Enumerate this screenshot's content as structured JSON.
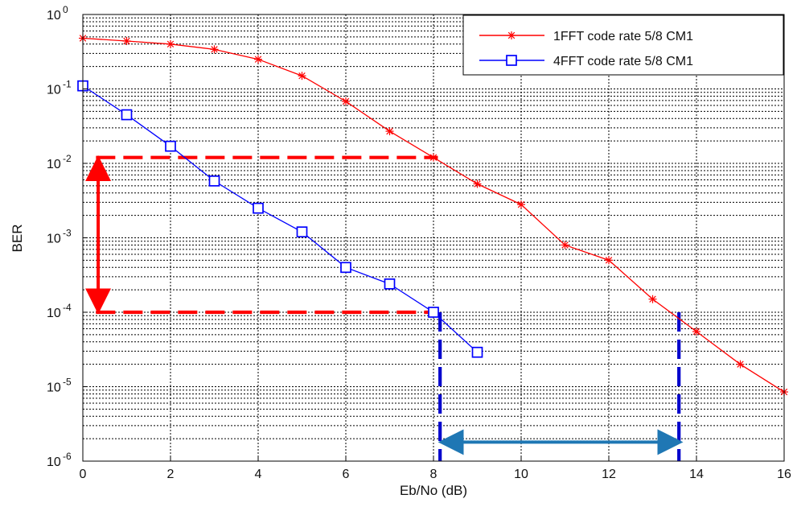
{
  "chart_data": {
    "type": "line",
    "xlabel": "Eb/No (dB)",
    "ylabel": "BER",
    "xlim": [
      0,
      16
    ],
    "ylim": [
      1e-06,
      1
    ],
    "yscale": "log",
    "grid": "major and minor",
    "legend_position": "top-right",
    "x_ticks": [
      "0",
      "2",
      "4",
      "6",
      "8",
      "10",
      "12",
      "14",
      "16"
    ],
    "y_ticks": [
      {
        "base": "10",
        "exp": "0"
      },
      {
        "base": "10",
        "exp": "-1"
      },
      {
        "base": "10",
        "exp": "-2"
      },
      {
        "base": "10",
        "exp": "-3"
      },
      {
        "base": "10",
        "exp": "-4"
      },
      {
        "base": "10",
        "exp": "-5"
      },
      {
        "base": "10",
        "exp": "-6"
      }
    ],
    "series": [
      {
        "name": "1FFT code rate 5/8 CM1",
        "color": "#ff0000",
        "marker": "asterisk",
        "x": [
          0,
          1,
          2,
          3,
          4,
          5,
          6,
          7,
          8,
          9,
          10,
          11,
          12,
          13,
          14,
          15,
          16
        ],
        "values": [
          0.48,
          0.44,
          0.4,
          0.34,
          0.25,
          0.15,
          0.068,
          0.027,
          0.012,
          0.0053,
          0.0028,
          0.0008,
          0.0005,
          0.00015,
          5.5e-05,
          2e-05,
          8.5e-06
        ]
      },
      {
        "name": "4FFT code rate 5/8 CM1",
        "color": "#0000ff",
        "marker": "square",
        "x": [
          0,
          1,
          2,
          3,
          4,
          5,
          6,
          7,
          8,
          9
        ],
        "values": [
          0.11,
          0.045,
          0.017,
          0.0058,
          0.0025,
          0.0012,
          0.0004,
          0.00024,
          0.0001,
          2.9e-05
        ]
      }
    ],
    "annotations": [
      {
        "kind": "dashed-line",
        "color": "#ff0000",
        "from": {
          "x": 0.3,
          "y": 0.012
        },
        "to": {
          "x": 8.1,
          "y": 0.012
        }
      },
      {
        "kind": "dashed-line",
        "color": "#ff0000",
        "from": {
          "x": 0.3,
          "y": 0.0001
        },
        "to": {
          "x": 8.1,
          "y": 0.0001
        }
      },
      {
        "kind": "double-arrow",
        "color": "#ff0000",
        "from": {
          "x": 0.35,
          "y": 0.0105
        },
        "to": {
          "x": 0.35,
          "y": 0.000115
        }
      },
      {
        "kind": "dashed-line",
        "color": "#0000cc",
        "from": {
          "x": 8.15,
          "y": 0.0001
        },
        "to": {
          "x": 8.15,
          "y": 1e-06
        }
      },
      {
        "kind": "dashed-line",
        "color": "#0000cc",
        "from": {
          "x": 13.6,
          "y": 0.0001
        },
        "to": {
          "x": 13.6,
          "y": 1e-06
        }
      },
      {
        "kind": "double-arrow",
        "color": "#1f77b4",
        "from": {
          "x": 8.25,
          "y": 1.8e-06
        },
        "to": {
          "x": 13.55,
          "y": 1.8e-06
        }
      }
    ]
  }
}
